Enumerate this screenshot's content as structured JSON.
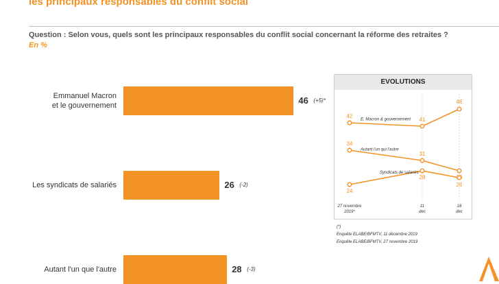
{
  "title": "les principaux responsables du conflit social",
  "question": "Question : Selon vous, quels sont les principaux responsables du conflit social concernant la réforme des retraites ?",
  "unit": "En %",
  "chart_data": [
    {
      "type": "bar",
      "orientation": "horizontal",
      "categories": [
        {
          "label_lines": [
            "Emmanuel Macron",
            "et le gouvernement"
          ],
          "value": 46,
          "change": "(+5)*"
        },
        {
          "label_lines": [
            "Les syndicats de salariés"
          ],
          "value": 26,
          "change": "(-2)"
        },
        {
          "label_lines": [
            "Autant l'un que l'autre"
          ],
          "value": 28,
          "change": "(-3)"
        }
      ],
      "xlim": [
        0,
        50
      ],
      "color": "#f39325"
    },
    {
      "type": "line",
      "title": "EVOLUTIONS",
      "x_labels": [
        {
          "lines": [
            "27 novembre",
            "2019*"
          ]
        },
        {
          "lines": [
            "11",
            "dec"
          ]
        },
        {
          "lines": [
            "18",
            "dec"
          ]
        }
      ],
      "x": [
        0,
        14,
        21
      ],
      "ylim": [
        20,
        50
      ],
      "series": [
        {
          "name": "E. Macron & gouvernement",
          "values": [
            42,
            41,
            46
          ]
        },
        {
          "name": "Autant l'un qui l'autre",
          "values": [
            34,
            31,
            28
          ]
        },
        {
          "name": "Syndicats de salariés",
          "values": [
            24,
            28,
            26
          ]
        }
      ],
      "color": "#f39325"
    }
  ],
  "notes": [
    "(*)",
    "Enquête ELABE/BFMTV, 11 décembre 2019",
    "Enquête ELABE/BFMTV, 27 novembre 2019"
  ]
}
